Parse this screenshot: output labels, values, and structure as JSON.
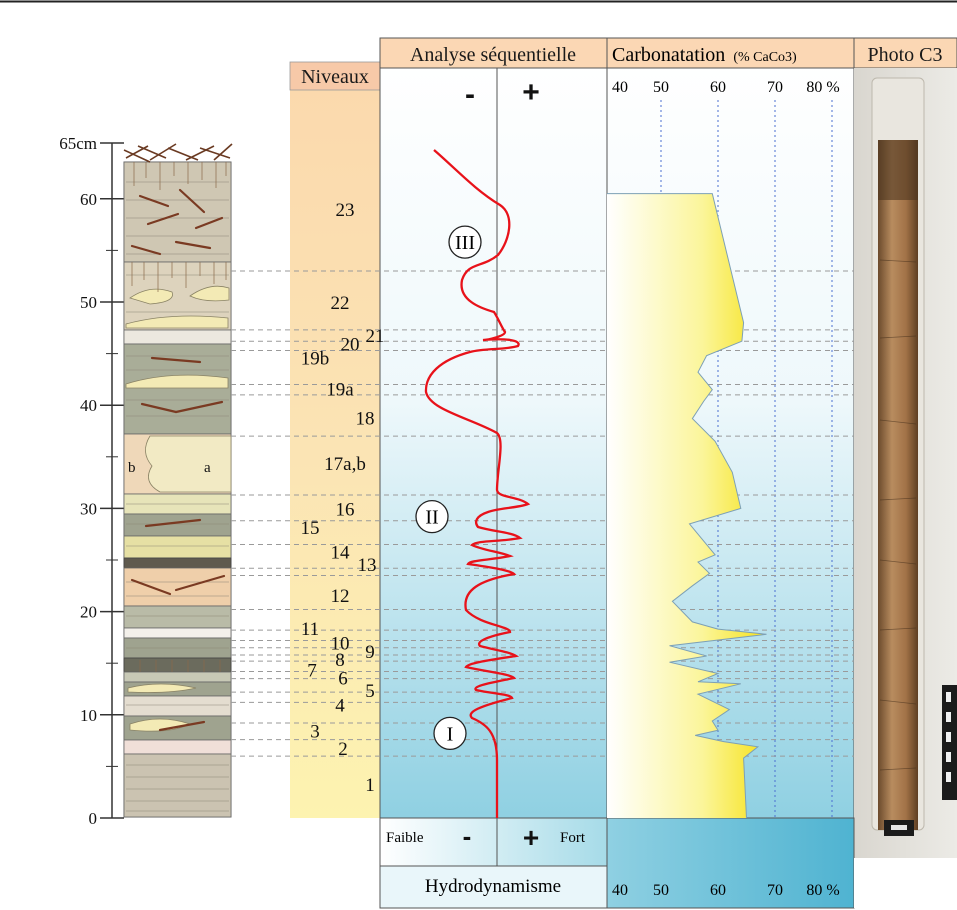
{
  "depth_axis": {
    "top_label": "65cm",
    "ticks": [
      "60",
      "50",
      "40",
      "30",
      "20",
      "10",
      "0"
    ],
    "unit": "cm",
    "range": [
      0,
      65
    ]
  },
  "log_letters": {
    "a": "a",
    "b": "b"
  },
  "niveaux": {
    "header": "Niveaux",
    "levels": [
      {
        "label": "23",
        "depth": 59
      },
      {
        "label": "22",
        "depth": 50
      },
      {
        "label": "21",
        "depth": 46.8
      },
      {
        "label": "20",
        "depth": 46
      },
      {
        "label": "19b",
        "depth": 44.6
      },
      {
        "label": "19a",
        "depth": 41.6
      },
      {
        "label": "18",
        "depth": 38.8
      },
      {
        "label": "17a,b",
        "depth": 34.4
      },
      {
        "label": "16",
        "depth": 30
      },
      {
        "label": "15",
        "depth": 28.2
      },
      {
        "label": "14",
        "depth": 25.8
      },
      {
        "label": "13",
        "depth": 24.6
      },
      {
        "label": "12",
        "depth": 21.6
      },
      {
        "label": "11",
        "depth": 18.4
      },
      {
        "label": "10",
        "depth": 17
      },
      {
        "label": "9",
        "depth": 16.2
      },
      {
        "label": "8",
        "depth": 15.4
      },
      {
        "label": "7",
        "depth": 14.4
      },
      {
        "label": "6",
        "depth": 13.6
      },
      {
        "label": "5",
        "depth": 12.4
      },
      {
        "label": "4",
        "depth": 11
      },
      {
        "label": "3",
        "depth": 8.5
      },
      {
        "label": "2",
        "depth": 6.8
      },
      {
        "label": "1",
        "depth": 3.3
      }
    ]
  },
  "sequential": {
    "header": "Analyse séquentielle",
    "minus": "-",
    "plus": "+",
    "sequences": [
      {
        "label": "III",
        "depth": 55.8
      },
      {
        "label": "II",
        "depth": 29.2
      },
      {
        "label": "I",
        "depth": 8.2
      }
    ]
  },
  "carbonate": {
    "header_main": "Carbonatation",
    "header_unit": "(% CaCo3)",
    "ticks_top": [
      "40",
      "50",
      "60",
      "70",
      "80 %"
    ],
    "ticks_bottom": [
      "40",
      "50",
      "60",
      "70",
      "80 %"
    ]
  },
  "photo": {
    "header": "Photo C3"
  },
  "hydro": {
    "faible": "Faible",
    "minus": "-",
    "plus": "+",
    "fort": "Fort",
    "title": "Hydrodynamisme"
  },
  "chart_data": {
    "type": "line",
    "y_axis": "depth (cm)",
    "ylim": [
      0,
      65
    ],
    "series": [
      {
        "name": "Carbonatation (% CaCo3)",
        "xlim": [
          40,
          80
        ],
        "points": [
          [
            59.0,
            60.5
          ],
          [
            64.5,
            48.0
          ],
          [
            64.2,
            46.2
          ],
          [
            58.0,
            44.8
          ],
          [
            56.5,
            43.2
          ],
          [
            59.0,
            41.5
          ],
          [
            57.5,
            40.4
          ],
          [
            55.5,
            38.7
          ],
          [
            59.5,
            36.5
          ],
          [
            62.5,
            33.5
          ],
          [
            64.0,
            30.0
          ],
          [
            55.0,
            28.5
          ],
          [
            59.5,
            25.5
          ],
          [
            56.5,
            24.8
          ],
          [
            58.5,
            23.7
          ],
          [
            55.5,
            22.5
          ],
          [
            52.0,
            21.0
          ],
          [
            55.5,
            19.0
          ],
          [
            60.0,
            18.3
          ],
          [
            68.5,
            17.8
          ],
          [
            51.5,
            16.7
          ],
          [
            58.0,
            15.7
          ],
          [
            51.5,
            15.1
          ],
          [
            60.0,
            14.0
          ],
          [
            56.5,
            13.2
          ],
          [
            64.0,
            13.0
          ],
          [
            56.5,
            12.0
          ],
          [
            62.0,
            10.5
          ],
          [
            59.0,
            9.4
          ],
          [
            60.0,
            8.5
          ],
          [
            56.0,
            8.0
          ],
          [
            61.0,
            7.4
          ],
          [
            67.0,
            6.9
          ],
          [
            64.5,
            5.8
          ],
          [
            65.0,
            0.0
          ]
        ]
      }
    ]
  }
}
